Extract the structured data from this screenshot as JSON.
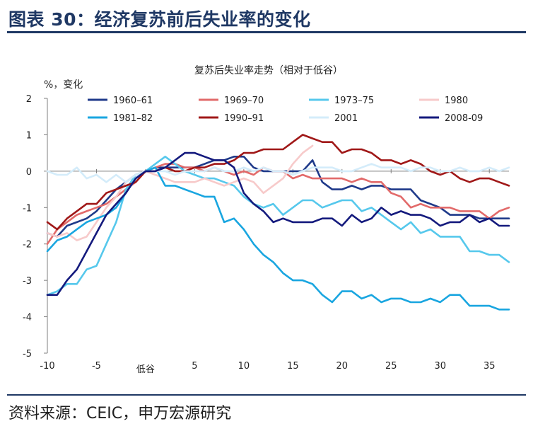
{
  "title": "图表 30：经济复苏前后失业率的变化",
  "source": "资料来源：CEIC，申万宏源研究",
  "chart_data": {
    "type": "line",
    "title": "复苏后失业率走势（相对于低谷）",
    "ylabel": "%，变化",
    "xlabel": "",
    "xlim": [
      -10,
      37
    ],
    "ylim": [
      -5,
      2
    ],
    "x_ticks": [
      {
        "value": -10,
        "label": "-10"
      },
      {
        "value": -5,
        "label": "-5"
      },
      {
        "value": 0,
        "label": "低谷"
      },
      {
        "value": 5,
        "label": "5"
      },
      {
        "value": 10,
        "label": "10"
      },
      {
        "value": 15,
        "label": "15"
      },
      {
        "value": 20,
        "label": "20"
      },
      {
        "value": 25,
        "label": "25"
      },
      {
        "value": 30,
        "label": "30"
      },
      {
        "value": 35,
        "label": "35"
      }
    ],
    "y_ticks": [
      2,
      1,
      0,
      -1,
      -2,
      -3,
      -4,
      -5
    ],
    "grid": false,
    "legend_position": "top",
    "series": [
      {
        "name": "1960–61",
        "color": "#1f3a8a",
        "width": 2.6,
        "x": [
          -10,
          -9,
          -8,
          -7,
          -6,
          -5,
          -4,
          -3,
          -2,
          -1,
          0,
          1,
          2,
          3,
          4,
          5,
          6,
          7,
          8,
          9,
          10,
          11,
          12,
          13,
          14,
          15,
          16,
          17,
          18,
          19,
          20,
          21,
          22,
          23,
          24,
          25,
          26,
          27,
          28,
          29,
          30,
          31,
          32,
          33,
          34,
          35,
          36,
          37
        ],
        "y": [
          -1.7,
          -1.8,
          -1.5,
          -1.4,
          -1.3,
          -1.1,
          -0.8,
          -0.5,
          -0.3,
          -0.1,
          0.0,
          0.1,
          0.1,
          0.1,
          0.1,
          0.1,
          0.2,
          0.3,
          0.3,
          0.4,
          0.4,
          0.1,
          0.0,
          0.0,
          0.0,
          0.0,
          0.0,
          0.3,
          -0.3,
          -0.5,
          -0.5,
          -0.4,
          -0.5,
          -0.4,
          -0.4,
          -0.5,
          -0.5,
          -0.5,
          -0.8,
          -0.9,
          -1.0,
          -1.2,
          -1.2,
          -1.2,
          -1.3,
          -1.3,
          -1.3,
          -1.3
        ]
      },
      {
        "name": "1969–70",
        "color": "#e26a6a",
        "width": 2.6,
        "x": [
          -10,
          -9,
          -8,
          -7,
          -6,
          -5,
          -4,
          -3,
          -2,
          -1,
          0,
          1,
          2,
          3,
          4,
          5,
          6,
          7,
          8,
          9,
          10,
          11,
          12,
          13,
          14,
          15,
          16,
          17,
          18,
          19,
          20,
          21,
          22,
          23,
          24,
          25,
          26,
          27,
          28,
          29,
          30,
          31,
          32,
          33,
          34,
          35,
          36,
          37
        ],
        "y": [
          -2.0,
          -1.6,
          -1.4,
          -1.2,
          -1.1,
          -1.0,
          -0.9,
          -0.7,
          -0.5,
          -0.3,
          0.0,
          0.1,
          0.2,
          0.2,
          0.1,
          0.1,
          0.0,
          0.1,
          0.0,
          -0.1,
          0.0,
          -0.1,
          0.1,
          0.0,
          0.0,
          -0.2,
          -0.1,
          -0.2,
          -0.2,
          -0.2,
          -0.2,
          -0.3,
          -0.2,
          -0.3,
          -0.3,
          -0.6,
          -0.7,
          -1.0,
          -0.9,
          -1.0,
          -1.0,
          -1.0,
          -1.1,
          -1.1,
          -1.1,
          -1.3,
          -1.1,
          -1.0
        ]
      },
      {
        "name": "1973–75",
        "color": "#56c8ec",
        "width": 2.6,
        "x": [
          -10,
          -9,
          -8,
          -7,
          -6,
          -5,
          -4,
          -3,
          -2,
          -1,
          0,
          1,
          2,
          3,
          4,
          5,
          6,
          7,
          8,
          9,
          10,
          11,
          12,
          13,
          14,
          15,
          16,
          17,
          18,
          19,
          20,
          21,
          22,
          23,
          24,
          25,
          26,
          27,
          28,
          29,
          30,
          31,
          32,
          33,
          34,
          35,
          36,
          37
        ],
        "y": [
          -3.4,
          -3.3,
          -3.1,
          -3.1,
          -2.7,
          -2.6,
          -2.0,
          -1.4,
          -0.5,
          -0.1,
          0.0,
          0.2,
          0.4,
          0.2,
          0.0,
          -0.1,
          -0.2,
          -0.2,
          -0.3,
          -0.4,
          -0.7,
          -0.9,
          -1.0,
          -0.9,
          -1.2,
          -1.0,
          -0.8,
          -0.8,
          -1.0,
          -0.9,
          -0.8,
          -0.8,
          -1.1,
          -1.0,
          -1.2,
          -1.4,
          -1.6,
          -1.4,
          -1.7,
          -1.6,
          -1.8,
          -1.8,
          -1.8,
          -2.2,
          -2.2,
          -2.3,
          -2.3,
          -2.5
        ]
      },
      {
        "name": "1980",
        "color": "#f7caca",
        "width": 2.6,
        "x": [
          -10,
          -9,
          -8,
          -7,
          -6,
          -5,
          -4,
          -3,
          -2,
          -1,
          0,
          1,
          2,
          3,
          4,
          5,
          6,
          7,
          8,
          9,
          10,
          11,
          12,
          13,
          14,
          15,
          16,
          17
        ],
        "y": [
          -1.7,
          -1.8,
          -1.7,
          -1.9,
          -1.8,
          -1.4,
          -1.0,
          -0.7,
          -0.3,
          -0.1,
          0.0,
          -0.1,
          -0.2,
          -0.3,
          -0.3,
          -0.3,
          -0.2,
          -0.3,
          -0.4,
          -0.3,
          -0.2,
          -0.3,
          -0.6,
          -0.4,
          -0.2,
          0.2,
          0.5,
          0.7
        ]
      },
      {
        "name": "1981–82",
        "color": "#1aa6e0",
        "width": 2.6,
        "x": [
          -10,
          -9,
          -8,
          -7,
          -6,
          -5,
          -4,
          -3,
          -2,
          -1,
          0,
          1,
          2,
          3,
          4,
          5,
          6,
          7,
          8,
          9,
          10,
          11,
          12,
          13,
          14,
          15,
          16,
          17,
          18,
          19,
          20,
          21,
          22,
          23,
          24,
          25,
          26,
          27,
          28,
          29,
          30,
          31,
          32,
          33,
          34,
          35,
          36,
          37
        ],
        "y": [
          -2.2,
          -1.9,
          -1.8,
          -1.6,
          -1.4,
          -1.3,
          -1.2,
          -1.0,
          -0.6,
          -0.2,
          0.0,
          0.1,
          -0.4,
          -0.4,
          -0.5,
          -0.6,
          -0.7,
          -0.7,
          -1.4,
          -1.3,
          -1.6,
          -2.0,
          -2.3,
          -2.5,
          -2.8,
          -3.0,
          -3.0,
          -3.1,
          -3.4,
          -3.6,
          -3.3,
          -3.3,
          -3.5,
          -3.4,
          -3.6,
          -3.5,
          -3.5,
          -3.6,
          -3.6,
          -3.5,
          -3.6,
          -3.4,
          -3.4,
          -3.7,
          -3.7,
          -3.7,
          -3.8,
          -3.8
        ]
      },
      {
        "name": "1990–91",
        "color": "#a01818",
        "width": 2.6,
        "x": [
          -10,
          -9,
          -8,
          -7,
          -6,
          -5,
          -4,
          -3,
          -2,
          -1,
          0,
          1,
          2,
          3,
          4,
          5,
          6,
          7,
          8,
          9,
          10,
          11,
          12,
          13,
          14,
          15,
          16,
          17,
          18,
          19,
          20,
          21,
          22,
          23,
          24,
          25,
          26,
          27,
          28,
          29,
          30,
          31,
          32,
          33,
          34,
          35,
          36,
          37
        ],
        "y": [
          -1.4,
          -1.6,
          -1.3,
          -1.1,
          -0.9,
          -0.9,
          -0.6,
          -0.5,
          -0.4,
          -0.3,
          0.0,
          0.0,
          0.1,
          0.0,
          0.0,
          0.1,
          0.1,
          0.2,
          0.2,
          0.3,
          0.5,
          0.5,
          0.6,
          0.6,
          0.6,
          0.8,
          1.0,
          0.9,
          0.8,
          0.8,
          0.5,
          0.6,
          0.6,
          0.5,
          0.3,
          0.3,
          0.2,
          0.3,
          0.2,
          0.0,
          -0.1,
          0.0,
          -0.2,
          -0.3,
          -0.2,
          -0.2,
          -0.3,
          -0.4
        ]
      },
      {
        "name": "2001",
        "color": "#d4ecfa",
        "width": 2.6,
        "x": [
          -10,
          -9,
          -8,
          -7,
          -6,
          -5,
          -4,
          -3,
          -2,
          -1,
          0,
          1,
          2,
          3,
          4,
          5,
          6,
          7,
          8,
          9,
          10,
          11,
          12,
          13,
          14,
          15,
          16,
          17,
          18,
          19,
          20,
          21,
          22,
          23,
          24,
          25,
          26,
          27,
          28,
          29,
          30,
          31,
          32,
          33,
          34,
          35,
          36,
          37
        ],
        "y": [
          0.0,
          -0.1,
          -0.1,
          0.1,
          -0.2,
          -0.1,
          -0.3,
          -0.1,
          -0.3,
          -0.1,
          0.0,
          0.0,
          0.0,
          -0.1,
          0.0,
          0.0,
          0.0,
          0.1,
          0.0,
          0.0,
          0.1,
          0.0,
          0.1,
          0.0,
          0.0,
          -0.1,
          0.0,
          0.1,
          0.1,
          0.1,
          0.0,
          0.0,
          0.1,
          0.2,
          0.1,
          0.1,
          0.1,
          0.0,
          0.1,
          0.1,
          0.0,
          0.0,
          0.1,
          0.0,
          0.0,
          0.1,
          0.0,
          0.1
        ]
      },
      {
        "name": "2008-09",
        "color": "#141a7d",
        "width": 2.6,
        "x": [
          -10,
          -9,
          -8,
          -7,
          -6,
          -5,
          -4,
          -3,
          -2,
          -1,
          0,
          1,
          2,
          3,
          4,
          5,
          6,
          7,
          8,
          9,
          10,
          11,
          12,
          13,
          14,
          15,
          16,
          17,
          18,
          19,
          20,
          21,
          22,
          23,
          24,
          25,
          26,
          27,
          28,
          29,
          30,
          31,
          32,
          33,
          34,
          35,
          36,
          37
        ],
        "y": [
          -3.4,
          -3.4,
          -3.0,
          -2.7,
          -2.2,
          -1.7,
          -1.2,
          -0.9,
          -0.6,
          -0.2,
          0.0,
          0.0,
          0.1,
          0.3,
          0.5,
          0.5,
          0.4,
          0.3,
          0.3,
          0.1,
          -0.6,
          -0.9,
          -1.1,
          -1.4,
          -1.3,
          -1.4,
          -1.4,
          -1.4,
          -1.3,
          -1.3,
          -1.5,
          -1.2,
          -1.4,
          -1.3,
          -1.0,
          -1.2,
          -1.1,
          -1.2,
          -1.2,
          -1.3,
          -1.5,
          -1.4,
          -1.4,
          -1.2,
          -1.4,
          -1.3,
          -1.5,
          -1.5
        ]
      }
    ]
  }
}
